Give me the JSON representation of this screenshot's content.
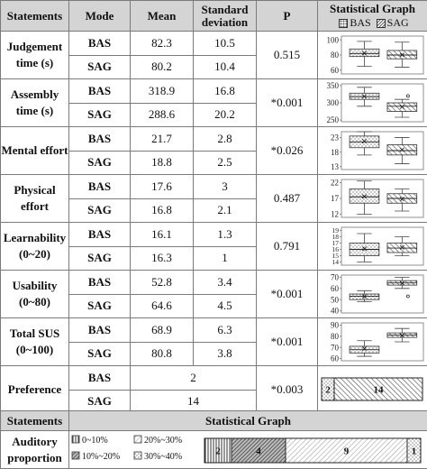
{
  "headers": {
    "statements": "Statements",
    "mode": "Mode",
    "mean": "Mean",
    "sd": "Standard deviation",
    "p": "P",
    "graph_title": "Statistical Graph",
    "legend_bas": "BAS",
    "legend_sag": "SAG"
  },
  "rows": [
    {
      "statement": "Judgement time (s)",
      "p": "0.515",
      "bas": {
        "mode": "BAS",
        "mean": "82.3",
        "sd": "10.5"
      },
      "sag": {
        "mode": "SAG",
        "mean": "80.2",
        "sd": "10.4"
      },
      "axis_ticks": [
        "100",
        "80",
        "60"
      ]
    },
    {
      "statement": "Assembly time (s)",
      "p": "*0.001",
      "bas": {
        "mode": "BAS",
        "mean": "318.9",
        "sd": "16.8"
      },
      "sag": {
        "mode": "SAG",
        "mean": "288.6",
        "sd": "20.2"
      },
      "axis_ticks": [
        "350",
        "300",
        "250"
      ]
    },
    {
      "statement": "Mental effort",
      "p": "*0.026",
      "bas": {
        "mode": "BAS",
        "mean": "21.7",
        "sd": "2.8"
      },
      "sag": {
        "mode": "SAG",
        "mean": "18.8",
        "sd": "2.5"
      },
      "axis_ticks": [
        "23",
        "18",
        "13"
      ]
    },
    {
      "statement": "Physical effort",
      "p": "0.487",
      "bas": {
        "mode": "BAS",
        "mean": "17.6",
        "sd": "3"
      },
      "sag": {
        "mode": "SAG",
        "mean": "16.8",
        "sd": "2.1"
      },
      "axis_ticks": [
        "22",
        "17",
        "12"
      ]
    },
    {
      "statement": "Learnability (0~20)",
      "p": "0.791",
      "bas": {
        "mode": "BAS",
        "mean": "16.1",
        "sd": "1.3"
      },
      "sag": {
        "mode": "SAG",
        "mean": "16.3",
        "sd": "1"
      },
      "axis_ticks": [
        "19",
        "18",
        "17",
        "16",
        "15",
        "14"
      ]
    },
    {
      "statement": "Usability (0~80)",
      "p": "*0.001",
      "bas": {
        "mode": "BAS",
        "mean": "52.8",
        "sd": "3.4"
      },
      "sag": {
        "mode": "SAG",
        "mean": "64.6",
        "sd": "4.5"
      },
      "axis_ticks": [
        "70",
        "60",
        "50",
        "40"
      ]
    },
    {
      "statement": "Total SUS (0~100)",
      "p": "*0.001",
      "bas": {
        "mode": "BAS",
        "mean": "68.9",
        "sd": "6.3"
      },
      "sag": {
        "mode": "SAG",
        "mean": "80.8",
        "sd": "3.8"
      },
      "axis_ticks": [
        "90",
        "80",
        "70",
        "60"
      ]
    }
  ],
  "preference": {
    "statement": "Preference",
    "p": "*0.003",
    "bas": {
      "mode": "BAS",
      "value": "2"
    },
    "sag": {
      "mode": "SAG",
      "value": "14"
    },
    "bar": [
      {
        "label": "2",
        "pattern": "dots"
      },
      {
        "label": "14",
        "pattern": "hatch"
      }
    ]
  },
  "bottom": {
    "statements": "Statements",
    "graph_title": "Statistical Graph",
    "auditory_label": "Auditory proportion",
    "legend": [
      "0~10%",
      "20%~30%",
      "10%~20%",
      "30%~40%"
    ],
    "bar": [
      {
        "label": "2",
        "pattern": "vlines"
      },
      {
        "label": "4",
        "pattern": "dark-hatch"
      },
      {
        "label": "9",
        "pattern": "light-hatch"
      },
      {
        "label": "1",
        "pattern": "dots"
      }
    ]
  },
  "chart_data": [
    {
      "type": "box",
      "name": "Judgement time (s)",
      "ylim": [
        55,
        105
      ],
      "ticks": [
        100,
        80,
        60
      ],
      "series": [
        {
          "name": "BAS",
          "min": 65,
          "q1": 78,
          "median": 82,
          "q3": 88,
          "max": 98,
          "mean": 82.3
        },
        {
          "name": "SAG",
          "min": 64,
          "q1": 75,
          "median": 80,
          "q3": 86,
          "max": 97,
          "mean": 80.2
        }
      ]
    },
    {
      "type": "box",
      "name": "Assembly time (s)",
      "ylim": [
        245,
        355
      ],
      "ticks": [
        350,
        300,
        250
      ],
      "series": [
        {
          "name": "BAS",
          "min": 290,
          "q1": 310,
          "median": 318,
          "q3": 328,
          "max": 345,
          "mean": 318.9
        },
        {
          "name": "SAG",
          "min": 258,
          "q1": 275,
          "median": 290,
          "q3": 300,
          "max": 310,
          "mean": 288.6,
          "outliers": [
            320
          ]
        }
      ]
    },
    {
      "type": "box",
      "name": "Mental effort",
      "ylim": [
        12,
        25
      ],
      "ticks": [
        23,
        18,
        13
      ],
      "series": [
        {
          "name": "BAS",
          "min": 17,
          "q1": 19.5,
          "median": 21.5,
          "q3": 23.5,
          "max": 25,
          "mean": 21.7
        },
        {
          "name": "SAG",
          "min": 14,
          "q1": 17,
          "median": 18.5,
          "q3": 20.5,
          "max": 23,
          "mean": 18.8
        }
      ]
    },
    {
      "type": "box",
      "name": "Physical effort",
      "ylim": [
        11,
        23
      ],
      "ticks": [
        22,
        17,
        12
      ],
      "series": [
        {
          "name": "BAS",
          "min": 12,
          "q1": 15.5,
          "median": 17.5,
          "q3": 20,
          "max": 22.5,
          "mean": 17.6
        },
        {
          "name": "SAG",
          "min": 13,
          "q1": 15.5,
          "median": 17,
          "q3": 18.5,
          "max": 20,
          "mean": 16.8
        }
      ]
    },
    {
      "type": "box",
      "name": "Learnability (0~20)",
      "ylim": [
        13.5,
        19.5
      ],
      "ticks": [
        19,
        18,
        17,
        16,
        15,
        14
      ],
      "series": [
        {
          "name": "BAS",
          "min": 14,
          "q1": 15,
          "median": 16,
          "q3": 17,
          "max": 18.5,
          "mean": 16.1
        },
        {
          "name": "SAG",
          "min": 15,
          "q1": 15.5,
          "median": 16.2,
          "q3": 17,
          "max": 18,
          "mean": 16.3
        }
      ]
    },
    {
      "type": "box",
      "name": "Usability (0~80)",
      "ylim": [
        38,
        72
      ],
      "ticks": [
        70,
        60,
        50,
        40
      ],
      "series": [
        {
          "name": "BAS",
          "min": 48,
          "q1": 50,
          "median": 53,
          "q3": 55,
          "max": 58,
          "mean": 52.8
        },
        {
          "name": "SAG",
          "min": 60,
          "q1": 63,
          "median": 65,
          "q3": 67,
          "max": 70,
          "mean": 64.6,
          "outliers": [
            53
          ]
        }
      ]
    },
    {
      "type": "box",
      "name": "Total SUS (0~100)",
      "ylim": [
        58,
        92
      ],
      "ticks": [
        90,
        80,
        70,
        60
      ],
      "series": [
        {
          "name": "BAS",
          "min": 62,
          "q1": 65,
          "median": 68,
          "q3": 71,
          "max": 76,
          "mean": 68.9
        },
        {
          "name": "SAG",
          "min": 75,
          "q1": 79,
          "median": 81,
          "q3": 83,
          "max": 87,
          "mean": 80.8
        }
      ]
    },
    {
      "type": "bar",
      "name": "Preference",
      "categories": [
        "BAS",
        "SAG"
      ],
      "values": [
        2,
        14
      ]
    },
    {
      "type": "bar",
      "name": "Auditory proportion",
      "categories": [
        "0~10%",
        "10%~20%",
        "20%~30%",
        "30%~40%"
      ],
      "values": [
        2,
        4,
        9,
        1
      ]
    }
  ]
}
